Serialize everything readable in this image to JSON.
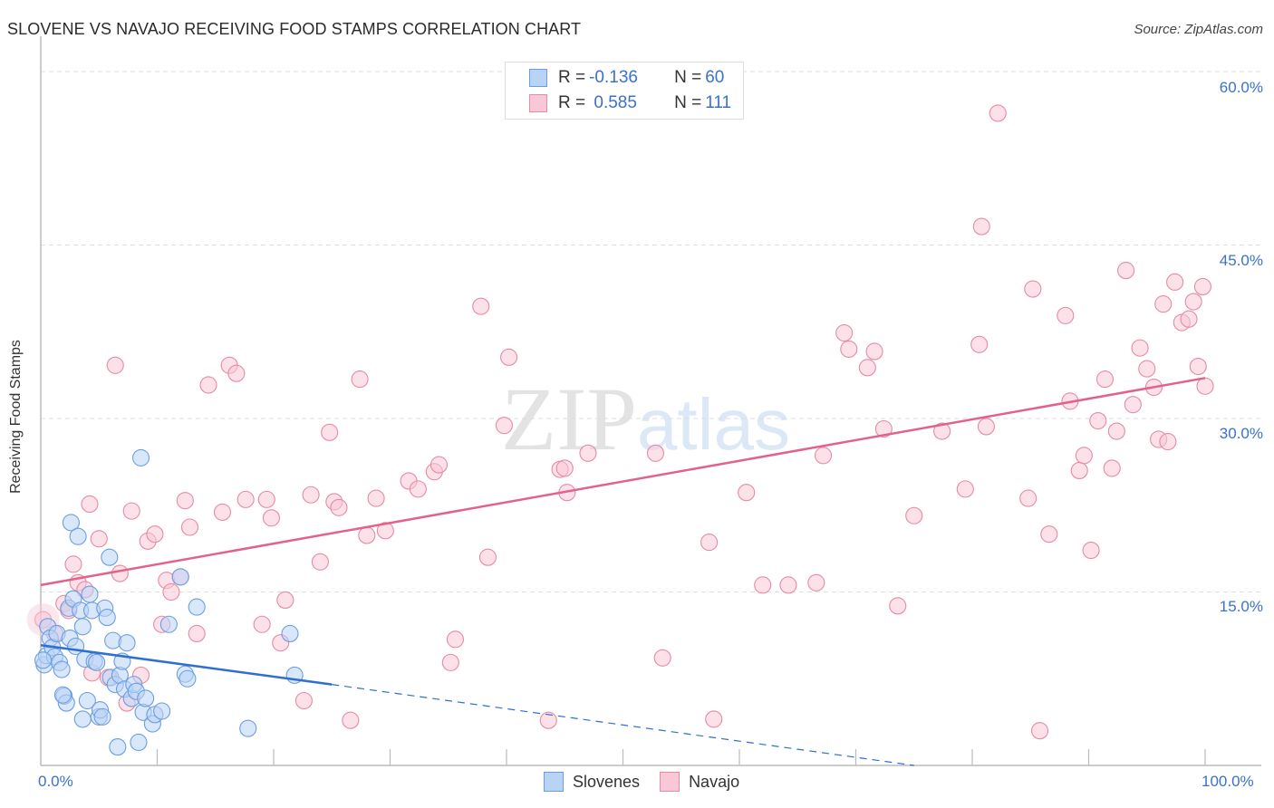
{
  "header": {
    "title": "SLOVENE VS NAVAJO RECEIVING FOOD STAMPS CORRELATION CHART",
    "source": "Source: ZipAtlas.com"
  },
  "legend_top": {
    "rows": [
      {
        "r_label": "R = ",
        "r_value": "-0.136",
        "n_label": "N = ",
        "n_value": "60",
        "color_fill": "#b9d3f5",
        "color_border": "#6b9ee0"
      },
      {
        "r_label": "R = ",
        "r_value": " 0.585",
        "n_label": "N = ",
        "n_value": "111",
        "color_fill": "#f9c8d6",
        "color_border": "#e68aa6"
      }
    ]
  },
  "axes": {
    "ylabel": "Receiving Food Stamps",
    "y_ticks": [
      "60.0%",
      "45.0%",
      "30.0%",
      "15.0%"
    ],
    "x_ticks": [
      "0.0%",
      "100.0%"
    ]
  },
  "legend_bottom": {
    "items": [
      {
        "label": "Slovenes",
        "color_fill": "#b9d3f5",
        "color_border": "#6b9ee0"
      },
      {
        "label": "Navajo",
        "color_fill": "#f9c8d6",
        "color_border": "#e68aa6"
      }
    ]
  },
  "watermark": {
    "zip": "ZIP",
    "atlas": "atlas"
  },
  "colors": {
    "slovenes_line": "#2f6fd0",
    "navajo_line": "#e2628c",
    "tick_label": "#3a72c9",
    "grid": "#dddddd"
  },
  "chart_data": {
    "type": "scatter",
    "title": "SLOVENE VS NAVAJO RECEIVING FOOD STAMPS CORRELATION CHART",
    "xlabel": "",
    "ylabel": "Receiving Food Stamps",
    "xlim": [
      0,
      100
    ],
    "ylim": [
      0,
      62
    ],
    "y_ticks": [
      15,
      30,
      45,
      60
    ],
    "x_ticks": [
      0,
      100
    ],
    "grid": "horizontal dashed",
    "legend_position": "top-center & bottom",
    "series": [
      {
        "name": "Slovenes",
        "R": -0.136,
        "N": 60,
        "trend": {
          "x0": 0,
          "y0": 10.4,
          "x1": 25,
          "y1": 7.0,
          "dashed_extension_to": {
            "x": 75,
            "y": 0
          }
        },
        "points": [
          [
            0.3,
            8.7
          ],
          [
            0.5,
            9.5
          ],
          [
            0.6,
            12.0
          ],
          [
            0.8,
            11.0
          ],
          [
            1.0,
            10.2
          ],
          [
            1.2,
            9.4
          ],
          [
            1.4,
            11.4
          ],
          [
            1.6,
            8.9
          ],
          [
            1.8,
            8.3
          ],
          [
            2.0,
            6.0
          ],
          [
            2.2,
            5.4
          ],
          [
            2.4,
            13.6
          ],
          [
            2.5,
            11.0
          ],
          [
            2.6,
            21.0
          ],
          [
            2.8,
            14.4
          ],
          [
            3.0,
            10.3
          ],
          [
            3.2,
            19.8
          ],
          [
            3.4,
            13.4
          ],
          [
            3.6,
            12.0
          ],
          [
            3.8,
            9.2
          ],
          [
            4.0,
            5.6
          ],
          [
            4.2,
            14.8
          ],
          [
            4.4,
            13.4
          ],
          [
            4.6,
            9.0
          ],
          [
            4.8,
            8.9
          ],
          [
            5.0,
            4.2
          ],
          [
            5.1,
            4.8
          ],
          [
            5.3,
            4.2
          ],
          [
            5.5,
            13.6
          ],
          [
            5.7,
            12.8
          ],
          [
            5.9,
            18.0
          ],
          [
            6.0,
            7.6
          ],
          [
            6.2,
            10.8
          ],
          [
            6.4,
            7.0
          ],
          [
            6.6,
            1.6
          ],
          [
            6.8,
            7.8
          ],
          [
            7.0,
            9.0
          ],
          [
            7.2,
            6.6
          ],
          [
            7.4,
            10.6
          ],
          [
            7.8,
            5.8
          ],
          [
            8.0,
            7.0
          ],
          [
            8.2,
            6.4
          ],
          [
            8.4,
            2.0
          ],
          [
            8.6,
            26.6
          ],
          [
            8.8,
            4.6
          ],
          [
            9.0,
            5.8
          ],
          [
            9.6,
            3.6
          ],
          [
            9.8,
            4.4
          ],
          [
            10.4,
            4.7
          ],
          [
            11.0,
            12.2
          ],
          [
            12.0,
            16.3
          ],
          [
            12.4,
            7.9
          ],
          [
            12.6,
            7.5
          ],
          [
            13.4,
            13.7
          ],
          [
            17.8,
            3.2
          ],
          [
            21.4,
            11.4
          ],
          [
            21.8,
            7.8
          ],
          [
            0.2,
            9.1
          ],
          [
            1.9,
            6.1
          ],
          [
            3.6,
            4.0
          ]
        ]
      },
      {
        "name": "Navajo",
        "R": 0.585,
        "N": 111,
        "trend": {
          "x0": 0,
          "y0": 15.6,
          "x1": 100,
          "y1": 33.5
        },
        "points": [
          [
            0.2,
            12.6
          ],
          [
            1.2,
            11.4
          ],
          [
            2.0,
            14.0
          ],
          [
            2.4,
            13.4
          ],
          [
            2.8,
            17.4
          ],
          [
            3.2,
            15.8
          ],
          [
            3.8,
            15.2
          ],
          [
            4.2,
            22.6
          ],
          [
            4.4,
            8.0
          ],
          [
            5.0,
            19.6
          ],
          [
            5.8,
            7.6
          ],
          [
            6.4,
            34.6
          ],
          [
            6.8,
            16.6
          ],
          [
            7.4,
            5.4
          ],
          [
            7.8,
            22.0
          ],
          [
            8.6,
            7.8
          ],
          [
            9.2,
            19.4
          ],
          [
            9.8,
            20.0
          ],
          [
            10.4,
            12.2
          ],
          [
            10.8,
            16.0
          ],
          [
            11.2,
            15.0
          ],
          [
            12.0,
            16.3
          ],
          [
            12.4,
            22.9
          ],
          [
            12.8,
            20.6
          ],
          [
            13.4,
            11.4
          ],
          [
            14.4,
            32.9
          ],
          [
            15.6,
            21.9
          ],
          [
            16.2,
            34.6
          ],
          [
            16.8,
            33.9
          ],
          [
            17.6,
            23.0
          ],
          [
            19.0,
            12.2
          ],
          [
            19.4,
            23.0
          ],
          [
            19.8,
            21.4
          ],
          [
            20.6,
            10.6
          ],
          [
            21.0,
            14.3
          ],
          [
            22.6,
            5.6
          ],
          [
            23.2,
            23.4
          ],
          [
            24.0,
            17.6
          ],
          [
            24.8,
            28.8
          ],
          [
            25.2,
            22.8
          ],
          [
            25.6,
            22.3
          ],
          [
            26.6,
            3.9
          ],
          [
            27.4,
            33.4
          ],
          [
            28.0,
            19.9
          ],
          [
            28.8,
            23.1
          ],
          [
            29.6,
            20.3
          ],
          [
            31.6,
            24.6
          ],
          [
            32.4,
            23.9
          ],
          [
            33.8,
            25.4
          ],
          [
            34.2,
            26.0
          ],
          [
            35.2,
            8.9
          ],
          [
            35.6,
            10.9
          ],
          [
            37.8,
            39.7
          ],
          [
            38.4,
            18.0
          ],
          [
            39.8,
            29.4
          ],
          [
            40.2,
            35.3
          ],
          [
            43.6,
            3.9
          ],
          [
            44.6,
            25.6
          ],
          [
            45.0,
            25.7
          ],
          [
            45.2,
            23.6
          ],
          [
            47.0,
            27.0
          ],
          [
            53.4,
            9.3
          ],
          [
            57.4,
            19.3
          ],
          [
            57.8,
            4.0
          ],
          [
            60.6,
            23.6
          ],
          [
            62.0,
            15.6
          ],
          [
            64.2,
            15.6
          ],
          [
            66.6,
            15.8
          ],
          [
            67.2,
            26.8
          ],
          [
            69.0,
            37.4
          ],
          [
            69.4,
            36.0
          ],
          [
            71.0,
            34.4
          ],
          [
            71.6,
            35.8
          ],
          [
            72.4,
            29.1
          ],
          [
            73.6,
            13.8
          ],
          [
            75.0,
            21.6
          ],
          [
            77.4,
            28.9
          ],
          [
            79.4,
            23.9
          ],
          [
            80.6,
            36.4
          ],
          [
            80.8,
            46.6
          ],
          [
            81.2,
            29.3
          ],
          [
            82.2,
            56.4
          ],
          [
            84.8,
            23.1
          ],
          [
            85.2,
            41.2
          ],
          [
            86.6,
            20.0
          ],
          [
            88.0,
            38.9
          ],
          [
            88.4,
            31.5
          ],
          [
            89.2,
            25.5
          ],
          [
            89.6,
            26.8
          ],
          [
            90.2,
            18.6
          ],
          [
            90.8,
            29.8
          ],
          [
            91.4,
            33.4
          ],
          [
            92.0,
            25.7
          ],
          [
            92.4,
            28.9
          ],
          [
            93.2,
            42.8
          ],
          [
            93.8,
            31.2
          ],
          [
            94.4,
            36.1
          ],
          [
            95.0,
            34.3
          ],
          [
            95.6,
            32.7
          ],
          [
            96.0,
            28.2
          ],
          [
            96.4,
            39.9
          ],
          [
            96.8,
            28.0
          ],
          [
            97.4,
            41.8
          ],
          [
            98.0,
            38.3
          ],
          [
            98.6,
            38.6
          ],
          [
            99.0,
            40.1
          ],
          [
            99.4,
            34.5
          ],
          [
            99.8,
            41.4
          ],
          [
            100.0,
            32.8
          ],
          [
            85.8,
            3.0
          ],
          [
            52.8,
            27.0
          ]
        ]
      }
    ]
  }
}
